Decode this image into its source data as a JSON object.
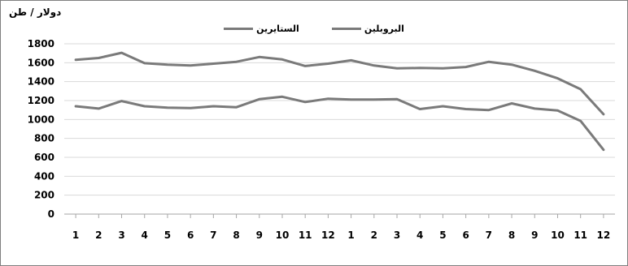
{
  "chart_data": {
    "type": "line",
    "ylabel": "دولار / طن",
    "categories": [
      "1",
      "2",
      "3",
      "4",
      "5",
      "6",
      "7",
      "8",
      "9",
      "10",
      "11",
      "12",
      "1",
      "2",
      "3",
      "4",
      "5",
      "6",
      "7",
      "8",
      "9",
      "10",
      "11",
      "12"
    ],
    "ylim": [
      0,
      1800
    ],
    "yticks": [
      0,
      200,
      400,
      600,
      800,
      1000,
      1200,
      1400,
      1600,
      1800
    ],
    "grid": true,
    "legend_position": "top-center",
    "series": [
      {
        "name": "الستايرين",
        "color": "#7a7a7a",
        "values": [
          1630,
          1650,
          1705,
          1595,
          1580,
          1570,
          1590,
          1610,
          1660,
          1635,
          1565,
          1590,
          1625,
          1570,
          1540,
          1545,
          1540,
          1555,
          1610,
          1580,
          1515,
          1435,
          1320,
          1055
        ]
      },
      {
        "name": "البروبلين",
        "color": "#7a7a7a",
        "values": [
          1140,
          1115,
          1195,
          1140,
          1125,
          1120,
          1140,
          1130,
          1215,
          1240,
          1185,
          1220,
          1210,
          1210,
          1215,
          1110,
          1140,
          1110,
          1100,
          1170,
          1115,
          1095,
          985,
          680
        ]
      }
    ]
  }
}
